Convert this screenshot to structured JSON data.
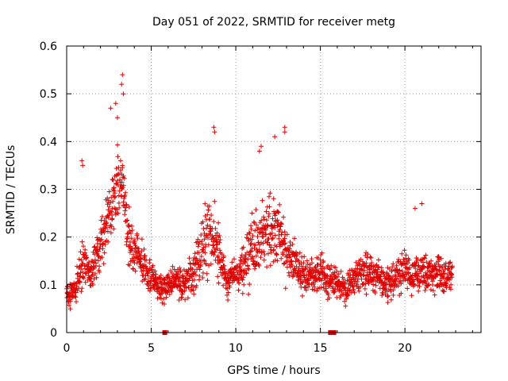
{
  "chart_data": {
    "type": "scatter",
    "title": "Day 051 of 2022, SRMTID for receiver metg",
    "xlabel": "GPS time / hours",
    "ylabel": "SRMTID / TECUs",
    "xlim": [
      0,
      24.5
    ],
    "ylim": [
      0,
      0.6
    ],
    "x_ticks": [
      "0",
      "5",
      "10",
      "15",
      "20"
    ],
    "y_ticks": [
      "0",
      "0.1",
      "0.2",
      "0.3",
      "0.4",
      "0.5",
      "0.6"
    ],
    "grid": true,
    "marker": "plus",
    "color": "#e00000",
    "series": [
      {
        "name": "SRMTID",
        "trend": {
          "x": [
            0,
            0.5,
            1.0,
            1.5,
            2.0,
            2.5,
            3.0,
            3.3,
            3.6,
            4.0,
            4.5,
            5.0,
            5.5,
            6.0,
            6.5,
            7.0,
            7.5,
            8.0,
            8.4,
            8.7,
            9.0,
            9.5,
            10.0,
            10.5,
            11.0,
            11.5,
            12.0,
            12.5,
            13.0,
            13.5,
            14.0,
            14.5,
            15.0,
            15.5,
            16.0,
            16.5,
            17.0,
            17.5,
            18.0,
            18.5,
            19.0,
            19.5,
            20.0,
            20.5,
            21.0,
            21.5,
            22.0,
            22.5,
            22.8
          ],
          "y": [
            0.08,
            0.09,
            0.15,
            0.12,
            0.18,
            0.25,
            0.3,
            0.33,
            0.2,
            0.17,
            0.14,
            0.11,
            0.09,
            0.1,
            0.11,
            0.1,
            0.13,
            0.18,
            0.2,
            0.21,
            0.16,
            0.11,
            0.12,
            0.14,
            0.18,
            0.2,
            0.22,
            0.2,
            0.17,
            0.14,
            0.12,
            0.12,
            0.13,
            0.11,
            0.1,
            0.09,
            0.11,
            0.13,
            0.13,
            0.11,
            0.1,
            0.12,
            0.13,
            0.12,
            0.12,
            0.13,
            0.12,
            0.11,
            0.13
          ],
          "spread": [
            0.04,
            0.05,
            0.08,
            0.06,
            0.08,
            0.1,
            0.12,
            0.14,
            0.09,
            0.07,
            0.06,
            0.05,
            0.04,
            0.05,
            0.05,
            0.05,
            0.06,
            0.1,
            0.13,
            0.12,
            0.08,
            0.05,
            0.05,
            0.07,
            0.1,
            0.1,
            0.12,
            0.12,
            0.1,
            0.07,
            0.06,
            0.06,
            0.06,
            0.06,
            0.05,
            0.05,
            0.05,
            0.06,
            0.06,
            0.05,
            0.05,
            0.05,
            0.06,
            0.06,
            0.06,
            0.06,
            0.06,
            0.05,
            0.05
          ]
        },
        "x_range": [
          0,
          22.8
        ],
        "n_points": 1900
      }
    ],
    "peaks": [
      {
        "x": 3.3,
        "y": 0.54
      },
      {
        "x": 3.25,
        "y": 0.52
      },
      {
        "x": 3.35,
        "y": 0.5
      },
      {
        "x": 2.6,
        "y": 0.47
      },
      {
        "x": 2.9,
        "y": 0.48
      },
      {
        "x": 3.0,
        "y": 0.45
      },
      {
        "x": 8.7,
        "y": 0.43
      },
      {
        "x": 8.75,
        "y": 0.42
      },
      {
        "x": 12.9,
        "y": 0.43
      },
      {
        "x": 12.9,
        "y": 0.42
      },
      {
        "x": 12.3,
        "y": 0.41
      },
      {
        "x": 11.5,
        "y": 0.39
      },
      {
        "x": 11.4,
        "y": 0.38
      },
      {
        "x": 0.9,
        "y": 0.36
      },
      {
        "x": 0.95,
        "y": 0.35
      },
      {
        "x": 21.0,
        "y": 0.27
      },
      {
        "x": 20.6,
        "y": 0.26
      }
    ],
    "zero_markers": [
      {
        "x": 5.8,
        "y": 0
      },
      {
        "x": 15.6,
        "y": 0
      },
      {
        "x": 15.8,
        "y": 0
      }
    ]
  }
}
